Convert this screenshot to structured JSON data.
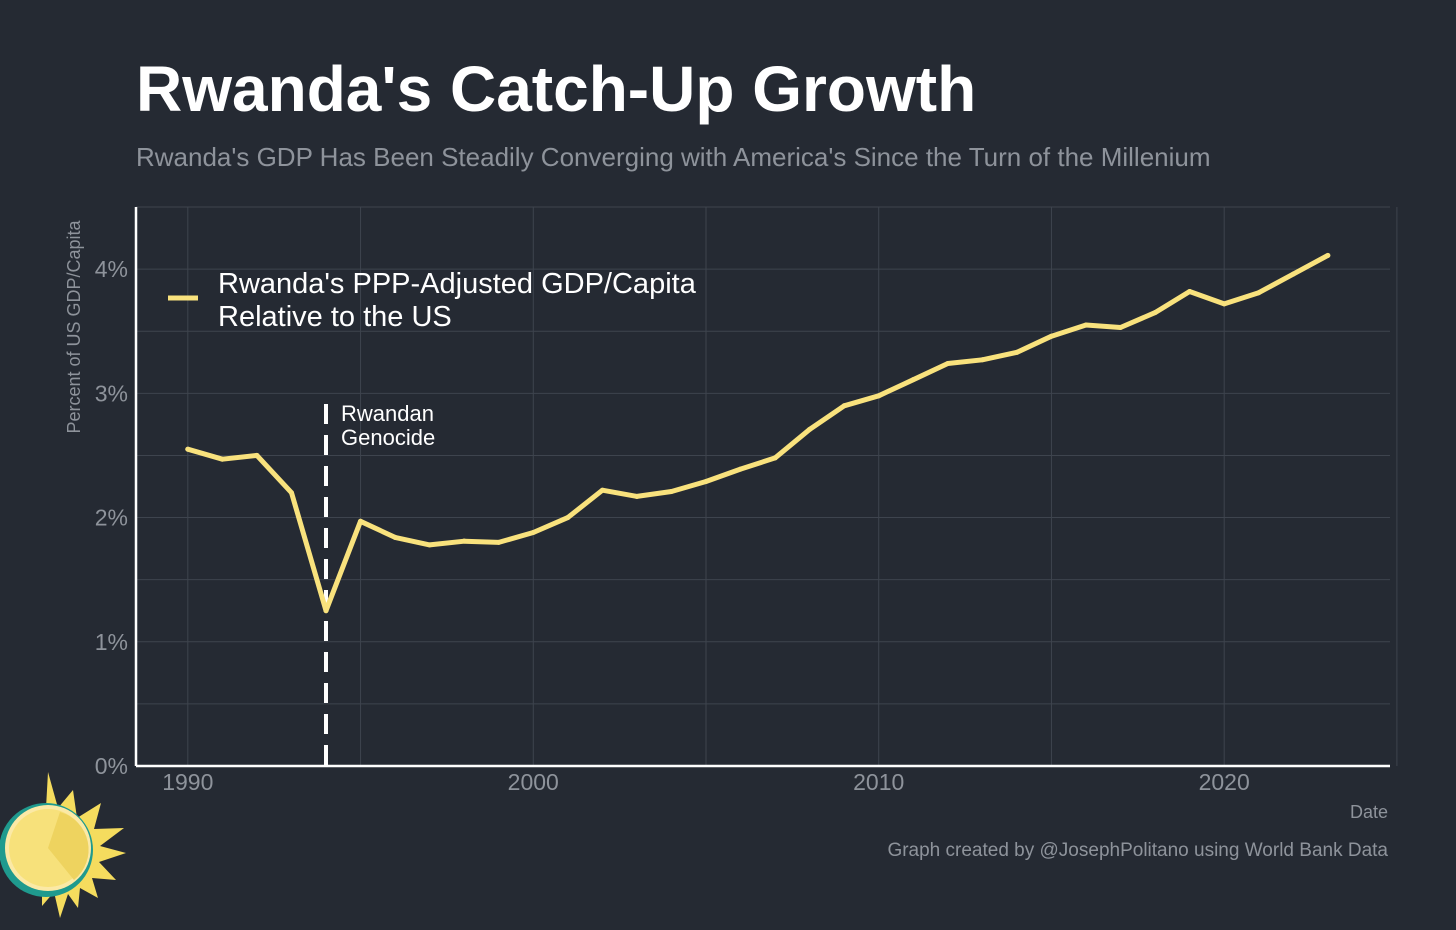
{
  "title": "Rwanda's Catch-Up Growth",
  "subtitle": "Rwanda's GDP Has Been Steadily Converging with America's Since the Turn of the Millenium",
  "caption": "Graph created by @JosephPolitano using World Bank Data",
  "colors": {
    "background": "#252a33",
    "line": "#f9e27d",
    "grid": "#3e444e",
    "muted_text": "#8e939b"
  },
  "logo": "sun-logo",
  "chart_data": {
    "type": "line",
    "xlabel": "Date",
    "ylabel": "Percent of US GDP/Capita",
    "xlim": [
      1988.5,
      2024.8
    ],
    "ylim": [
      0,
      4.5
    ],
    "x_ticks": [
      1990,
      2000,
      2010,
      2020
    ],
    "x_tick_labels": [
      "1990",
      "2000",
      "2010",
      "2020"
    ],
    "y_ticks": [
      0,
      1,
      2,
      3,
      4
    ],
    "y_tick_labels": [
      "0%",
      "1%",
      "2%",
      "3%",
      "4%"
    ],
    "grid": true,
    "legend_position": "top-left",
    "series": [
      {
        "name": "Rwanda's PPP-Adjusted GDP/Capita Relative to the US",
        "legend_lines": [
          "Rwanda's PPP-Adjusted GDP/Capita",
          "Relative to the US"
        ],
        "x": [
          1990,
          1991,
          1992,
          1993,
          1994,
          1995,
          1996,
          1997,
          1998,
          1999,
          2000,
          2001,
          2002,
          2003,
          2004,
          2005,
          2006,
          2007,
          2008,
          2009,
          2010,
          2011,
          2012,
          2013,
          2014,
          2015,
          2016,
          2017,
          2018,
          2019,
          2020,
          2021,
          2022,
          2023
        ],
        "values": [
          2.55,
          2.47,
          2.5,
          2.2,
          1.25,
          1.97,
          1.84,
          1.78,
          1.81,
          1.8,
          1.88,
          2.0,
          2.22,
          2.17,
          2.21,
          2.29,
          2.39,
          2.48,
          2.71,
          2.9,
          2.98,
          3.11,
          3.24,
          3.27,
          3.33,
          3.46,
          3.55,
          3.53,
          3.65,
          3.82,
          3.72,
          3.81,
          3.96,
          4.11
        ]
      }
    ],
    "annotations": [
      {
        "x": 1994,
        "lines": [
          "Rwandan",
          "Genocide"
        ],
        "style": "dashed-vertical"
      }
    ]
  }
}
